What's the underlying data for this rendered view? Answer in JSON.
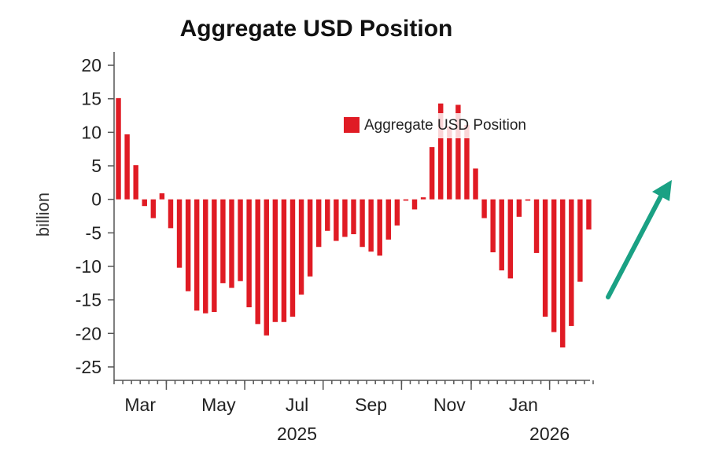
{
  "chart_data": {
    "type": "bar",
    "title": "Aggregate USD Position",
    "ylabel": "billion",
    "xlabel": "",
    "ylim": [
      -27,
      22
    ],
    "yticks": [
      20,
      15,
      10,
      5,
      0,
      -5,
      -10,
      -15,
      -20,
      -25
    ],
    "month_labels": [
      {
        "label": "Mar",
        "week": 2.5
      },
      {
        "label": "May",
        "week": 11.5
      },
      {
        "label": "Jul",
        "week": 20.5
      },
      {
        "label": "Sep",
        "week": 29
      },
      {
        "label": "Nov",
        "week": 38
      },
      {
        "label": "Jan",
        "week": 46.5
      }
    ],
    "year_labels": [
      {
        "label": "2025",
        "week": 20.5
      },
      {
        "label": "2026",
        "week": 49.5
      }
    ],
    "month_boundaries": [
      6,
      15,
      24,
      33,
      41,
      50
    ],
    "series": [
      {
        "name": "Aggregate USD Position",
        "color": "#e01b24",
        "values": [
          15.1,
          9.7,
          5.1,
          -1.0,
          -2.8,
          0.9,
          -4.3,
          -10.2,
          -13.7,
          -16.6,
          -17.0,
          -16.8,
          -12.5,
          -13.2,
          -12.2,
          -16.1,
          -18.6,
          -20.3,
          -18.3,
          -18.3,
          -17.5,
          -14.2,
          -11.5,
          -7.1,
          -4.7,
          -6.2,
          -5.6,
          -5.2,
          -7.1,
          -7.8,
          -8.4,
          -6.0,
          -3.9,
          -0.2,
          -1.5,
          0.3,
          7.8,
          14.3,
          10.9,
          14.1,
          11.1,
          4.6,
          -2.8,
          -7.9,
          -10.6,
          -11.8,
          -2.6,
          -0.2,
          -8.0,
          -17.5,
          -19.8,
          -22.1,
          -18.9,
          -12.3,
          -4.5
        ]
      }
    ]
  }
}
